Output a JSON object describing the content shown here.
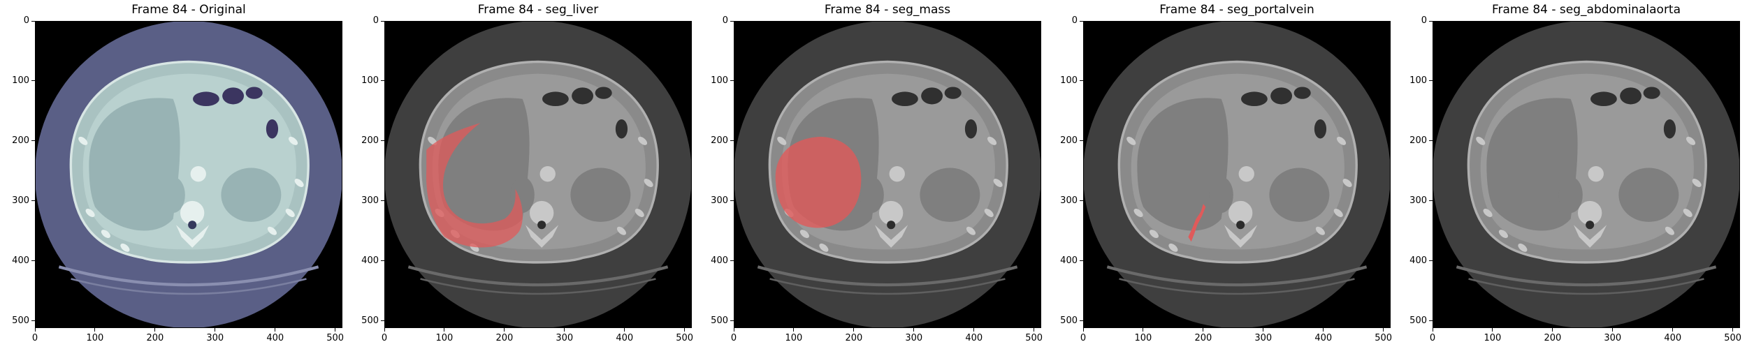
{
  "figure": {
    "panels": [
      {
        "title": "Frame 84 - Original",
        "variant": "original",
        "overlay": "none"
      },
      {
        "title": "Frame 84 - seg_liver",
        "variant": "gray",
        "overlay": "liver"
      },
      {
        "title": "Frame 84 - seg_mass",
        "variant": "gray",
        "overlay": "mass"
      },
      {
        "title": "Frame 84 - seg_portalvein",
        "variant": "gray",
        "overlay": "portalvein"
      },
      {
        "title": "Frame 84 - seg_abdominalaorta",
        "variant": "gray",
        "overlay": "none"
      }
    ],
    "x_ticks": [
      "0",
      "100",
      "200",
      "300",
      "400",
      "500"
    ],
    "y_ticks": [
      "0",
      "100",
      "200",
      "300",
      "400",
      "500"
    ],
    "x_tick_values": [
      0,
      100,
      200,
      300,
      400,
      500
    ],
    "y_tick_values": [
      0,
      100,
      200,
      300,
      400,
      500
    ],
    "image_extent": [
      0,
      512
    ],
    "colors": {
      "overlay": "#e05a5a",
      "original_body": "#a9c2c1",
      "original_field": "#5a5f86",
      "gray_body": "#8a8a8a",
      "gray_field": "#3f3f3f"
    }
  }
}
